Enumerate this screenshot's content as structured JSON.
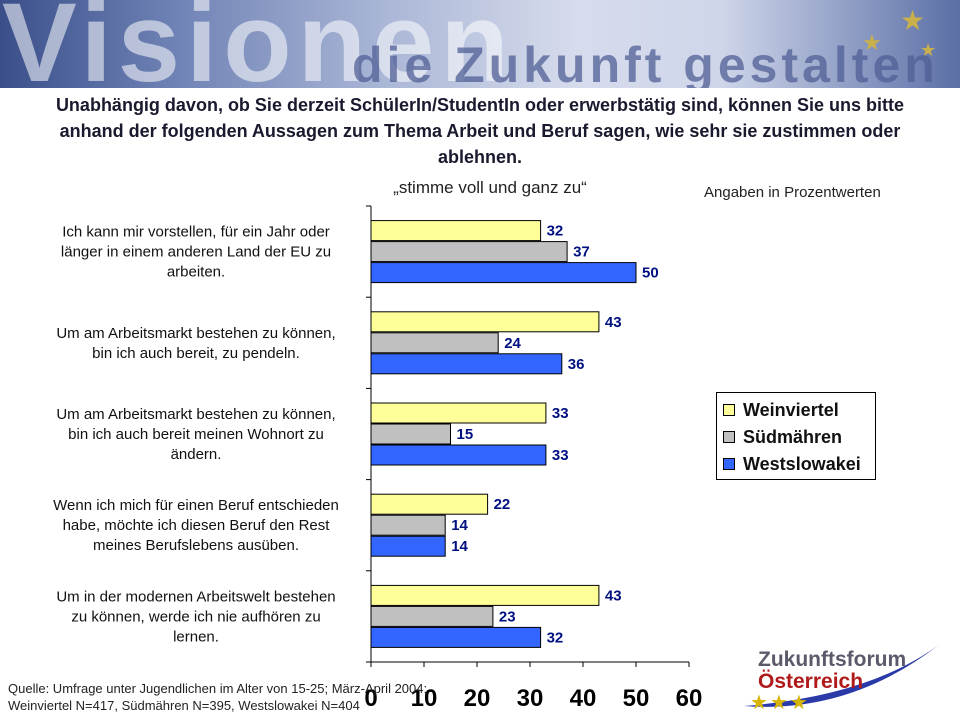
{
  "banner": {
    "word": "Visionen",
    "subword": "die Zukunft gestalten"
  },
  "question": "Unabhängig davon, ob Sie derzeit SchülerIn/StudentIn oder erwerbstätig sind, können Sie uns bitte anhand der folgenden Aussagen zum Thema Arbeit und Beruf sagen, wie sehr sie zustimmen oder ablehnen.",
  "subtitle": "„stimme voll und ganz zu“",
  "units": "Angaben in  Prozentwerten",
  "colors": {
    "Weinviertel": "#ffff99",
    "Südmähren": "#c0c0c0",
    "Westslowakei": "#3366ff"
  },
  "legend": [
    "Weinviertel",
    "Südmähren",
    "Westslowakei"
  ],
  "chart_data": {
    "type": "bar",
    "orientation": "horizontal",
    "categories": [
      [
        "Ich kann mir vorstellen, für ein Jahr oder",
        "länger in einem anderen Land der EU zu",
        "arbeiten."
      ],
      [
        "Um am Arbeitsmarkt bestehen zu können,",
        "bin ich auch bereit, zu pendeln."
      ],
      [
        "Um am Arbeitsmarkt bestehen zu können,",
        "bin ich auch bereit meinen Wohnort zu",
        "ändern."
      ],
      [
        "Wenn ich mich für einen Beruf entschieden",
        "habe, möchte ich diesen Beruf den Rest",
        "meines Berufslebens ausüben."
      ],
      [
        "Um in der modernen Arbeitswelt bestehen",
        "zu können, werde ich nie aufhören zu",
        "lernen."
      ]
    ],
    "series": [
      {
        "name": "Weinviertel",
        "values": [
          32,
          43,
          33,
          22,
          43
        ]
      },
      {
        "name": "Südmähren",
        "values": [
          37,
          24,
          15,
          14,
          23
        ]
      },
      {
        "name": "Westslowakei",
        "values": [
          50,
          36,
          33,
          14,
          32
        ]
      }
    ],
    "xlim": [
      0,
      60
    ],
    "xticks": [
      "0",
      "10",
      "20",
      "30",
      "40",
      "50",
      "60"
    ],
    "grid": false,
    "legend_position": "right"
  },
  "source": {
    "line1": "Quelle: Umfrage unter Jugendlichen im Alter von 15-25; März-April 2004;",
    "line2": "Weinviertel N=417, Südmähren N=395, Westslowakei N=404"
  },
  "logo": {
    "line1": "Zukunftsforum",
    "line2": "Österreich"
  }
}
